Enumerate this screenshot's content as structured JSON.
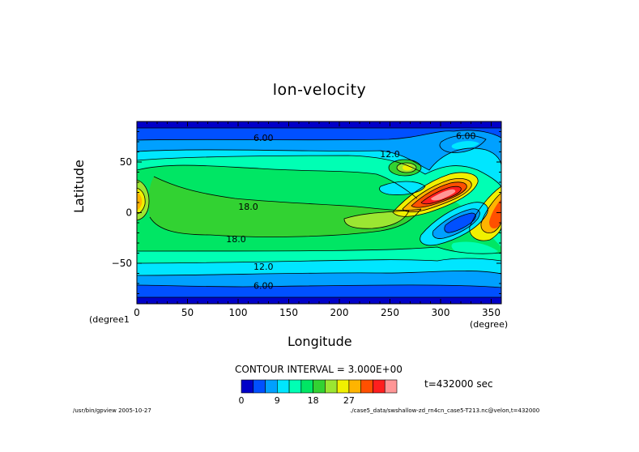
{
  "chart_data": {
    "type": "contour",
    "title": "lon-velocity",
    "xlabel": "Longitude",
    "ylabel": "Latitude",
    "x_unit": "(degree)",
    "y_unit": "(degree1",
    "xlim": [
      0,
      360
    ],
    "ylim": [
      -90,
      90
    ],
    "x_ticks": [
      0,
      50,
      100,
      150,
      200,
      250,
      300,
      350
    ],
    "y_ticks": [
      50,
      0,
      -50
    ],
    "contour_labels": [
      {
        "text": "6.00",
        "x": 125,
        "y": 74
      },
      {
        "text": "6.00",
        "x": 325,
        "y": 76
      },
      {
        "text": "12.0",
        "x": 250,
        "y": 58
      },
      {
        "text": "18.0",
        "x": 110,
        "y": 6
      },
      {
        "text": "18.0",
        "x": 98,
        "y": -26
      },
      {
        "text": "12.0",
        "x": 125,
        "y": -53
      },
      {
        "text": "6.00",
        "x": 125,
        "y": -72
      }
    ],
    "contour_interval": "CONTOUR INTERVAL = 3.000E+00",
    "time": "t=432000 sec",
    "colorbar": {
      "levels": [
        0,
        3,
        6,
        9,
        12,
        15,
        18,
        21,
        24,
        27,
        30,
        33,
        36
      ],
      "tick_labels": [
        "0",
        "9",
        "18",
        "27"
      ],
      "colors": [
        "#0000c8",
        "#0050ff",
        "#00a0ff",
        "#00e6ff",
        "#00ffb4",
        "#00e664",
        "#32d232",
        "#9be632",
        "#f0f000",
        "#ffb400",
        "#ff5000",
        "#ff1e1e",
        "#ff9696"
      ]
    }
  },
  "footer_left": "/usr/bin/gpview  2005-10-27",
  "footer_right": "./case5_data/swshallow-zd_rn4cn_case5-T213.nc@velon,t=432000"
}
